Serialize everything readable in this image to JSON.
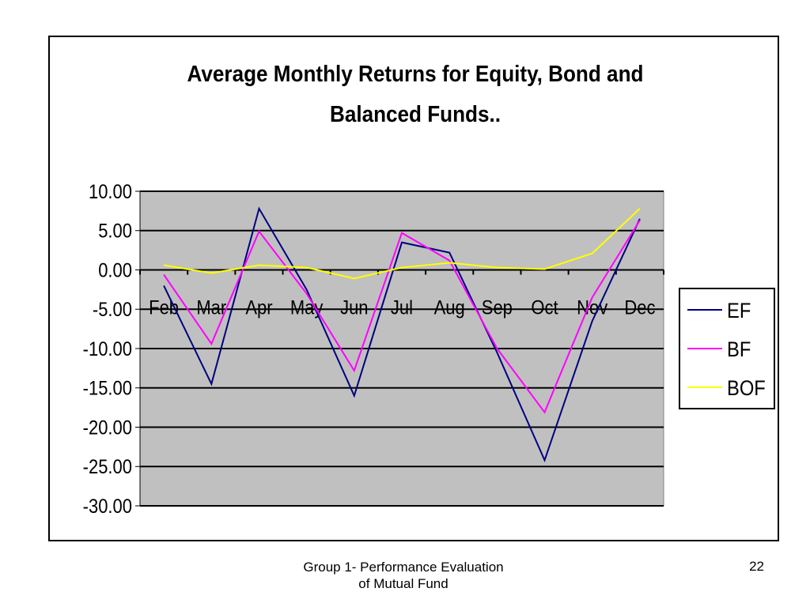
{
  "chart_data": {
    "type": "line",
    "title_lines": [
      "Average Monthly Returns for Equity, Bond and",
      "Balanced Funds.."
    ],
    "categories": [
      "Feb",
      "Mar",
      "Apr",
      "May",
      "Jun",
      "Jul",
      "Aug",
      "Sep",
      "Oct",
      "Nov",
      "Dec"
    ],
    "ylim": [
      -30,
      10
    ],
    "yticks": [
      10,
      5,
      0,
      -5,
      -10,
      -15,
      -20,
      -25,
      -30
    ],
    "ytick_labels": [
      "10.00",
      "5.00",
      "0.00",
      "-5.00",
      "-10.00",
      "-15.00",
      "-20.00",
      "-25.00",
      "-30.00"
    ],
    "grid": true,
    "legend_position": "right",
    "plot_background": "#c0c0c0",
    "series": [
      {
        "name": "EF",
        "color": "#000080",
        "values": [
          -2.0,
          -14.5,
          7.8,
          -2.5,
          -16.0,
          3.5,
          2.2,
          -10.5,
          -24.2,
          -6.5,
          6.5
        ]
      },
      {
        "name": "BF",
        "color": "#ff00ff",
        "values": [
          -0.6,
          -9.4,
          4.9,
          -3.0,
          -12.8,
          4.7,
          1.2,
          -10.0,
          -18.1,
          -3.5,
          6.3
        ]
      },
      {
        "name": "BOF",
        "color": "#ffff00",
        "values": [
          0.6,
          -0.4,
          0.6,
          0.3,
          -1.1,
          0.3,
          0.9,
          0.3,
          0.1,
          2.1,
          7.8
        ]
      }
    ]
  },
  "footer": {
    "line1": "Group 1- Performance Evaluation",
    "line2": "of Mutual Fund",
    "page_number": "22"
  }
}
